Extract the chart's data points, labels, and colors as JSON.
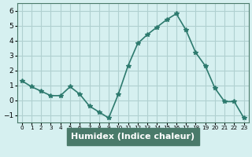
{
  "x": [
    0,
    1,
    2,
    3,
    4,
    5,
    6,
    7,
    8,
    9,
    10,
    11,
    12,
    13,
    14,
    15,
    16,
    17,
    18,
    19,
    20,
    21,
    22,
    23
  ],
  "y": [
    1.3,
    0.9,
    0.6,
    0.3,
    0.3,
    0.9,
    0.4,
    -0.4,
    -0.8,
    -1.2,
    0.4,
    2.3,
    3.8,
    4.4,
    4.9,
    5.4,
    5.8,
    4.7,
    3.2,
    2.3,
    0.8,
    -0.1,
    -0.1,
    -1.2
  ],
  "xlabel": "Humidex (Indice chaleur)",
  "ylim": [
    -1.5,
    6.5
  ],
  "xlim": [
    -0.5,
    23.5
  ],
  "yticks": [
    -1,
    0,
    1,
    2,
    3,
    4,
    5,
    6
  ],
  "xticks": [
    0,
    1,
    2,
    3,
    4,
    5,
    6,
    7,
    8,
    9,
    10,
    11,
    12,
    13,
    14,
    15,
    16,
    17,
    18,
    19,
    20,
    21,
    22,
    23
  ],
  "line_color": "#2d7a6e",
  "marker_color": "#2d7a6e",
  "bg_color": "#d6f0f0",
  "grid_color": "#b0d0d0",
  "axis_bg": "#d6f0f0",
  "bottom_bar_color": "#4a7a6a",
  "bottom_bar_text_color": "#ffffff",
  "xlabel_fontsize": 8
}
